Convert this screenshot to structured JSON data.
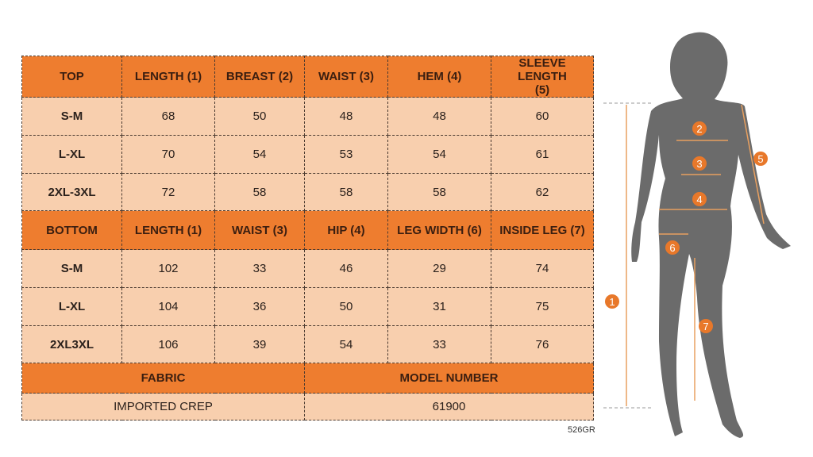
{
  "top": {
    "headers": [
      "TOP",
      "LENGTH (1)",
      "BREAST (2)",
      "WAIST (3)",
      "HEM (4)",
      "SLEEVE LENGTH (5)"
    ],
    "rows": [
      [
        "S-M",
        "68",
        "50",
        "48",
        "48",
        "60"
      ],
      [
        "L-XL",
        "70",
        "54",
        "53",
        "54",
        "61"
      ],
      [
        "2XL-3XL",
        "72",
        "58",
        "58",
        "58",
        "62"
      ]
    ]
  },
  "bottom": {
    "headers": [
      "BOTTOM",
      "LENGTH (1)",
      "WAIST (3)",
      "HIP (4)",
      "LEG WIDTH (6)",
      "INSIDE LEG (7)"
    ],
    "rows": [
      [
        "S-M",
        "102",
        "33",
        "46",
        "29",
        "74"
      ],
      [
        "L-XL",
        "104",
        "36",
        "50",
        "31",
        "75"
      ],
      [
        "2XL3XL",
        "106",
        "39",
        "54",
        "33",
        "76"
      ]
    ]
  },
  "fabric": {
    "label": "FABRIC",
    "value": "IMPORTED CREP"
  },
  "model": {
    "label": "MODEL NUMBER",
    "value": "61900"
  },
  "code": "526GR",
  "figure": {
    "markers": [
      "1",
      "2",
      "3",
      "4",
      "5",
      "6",
      "7"
    ]
  },
  "colors": {
    "header": "#ee7d2f",
    "cell": "#f8cfae",
    "silhouette": "#6b6b6b",
    "marker": "#e8782a"
  }
}
